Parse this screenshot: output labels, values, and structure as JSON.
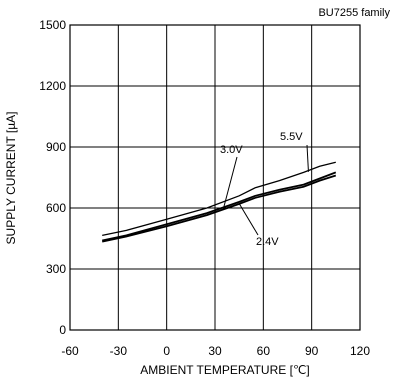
{
  "colors": {
    "line": "#000000",
    "grid": "#000000",
    "background": "#ffffff"
  },
  "chart_data": {
    "type": "line",
    "title": "BU7255 family",
    "xlabel": "AMBIENT TEMPERATURE [℃]",
    "ylabel": "SUPPLY CURRENT [µA]",
    "xlim": [
      -60,
      120
    ],
    "ylim": [
      0,
      1500
    ],
    "xticks": [
      -60,
      -30,
      0,
      30,
      60,
      90,
      120
    ],
    "yticks": [
      0,
      300,
      600,
      900,
      1200,
      1500
    ],
    "xtick_labels": [
      "-60",
      "-30",
      "0",
      "30",
      "60",
      "90",
      "120"
    ],
    "ytick_labels": [
      "0",
      "300",
      "600",
      "900",
      "1200",
      "1500"
    ],
    "grid": true,
    "legend": "none",
    "series": [
      {
        "name": "5.5V",
        "x": [
          -40,
          -25,
          0,
          25,
          45,
          55,
          70,
          85,
          95,
          105
        ],
        "y": [
          465,
          490,
          545,
          600,
          660,
          700,
          735,
          775,
          805,
          825
        ]
      },
      {
        "name": "3.0V",
        "x": [
          -40,
          -25,
          0,
          25,
          45,
          55,
          70,
          85,
          95,
          105
        ],
        "y": [
          440,
          465,
          520,
          575,
          630,
          660,
          690,
          715,
          745,
          775
        ]
      },
      {
        "name": "2.4V",
        "x": [
          -40,
          -25,
          0,
          25,
          45,
          55,
          70,
          85,
          95,
          105
        ],
        "y": [
          435,
          460,
          510,
          565,
          620,
          650,
          680,
          705,
          735,
          760
        ]
      }
    ],
    "annotations": [
      {
        "text": "5.5V",
        "series": 0
      },
      {
        "text": "3.0V",
        "series": 1
      },
      {
        "text": "2.4V",
        "series": 2
      }
    ]
  }
}
